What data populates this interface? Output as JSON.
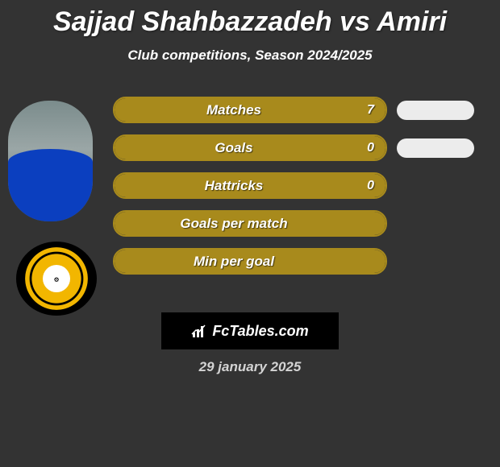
{
  "title": "Sajjad Shahbazzadeh vs Amiri",
  "subtitle": "Club competitions, Season 2024/2025",
  "brand": "FcTables.com",
  "date": "29 january 2025",
  "colors": {
    "accent": "#a88a1c",
    "accent_fill": "#a88a1c",
    "chip": "#ececec"
  },
  "stats": {
    "rows": [
      {
        "label": "Matches",
        "value": "7",
        "fill_pct": 100,
        "show_chip": true
      },
      {
        "label": "Goals",
        "value": "0",
        "fill_pct": 100,
        "show_chip": true
      },
      {
        "label": "Hattricks",
        "value": "0",
        "fill_pct": 100,
        "show_chip": false
      },
      {
        "label": "Goals per match",
        "value": "",
        "fill_pct": 100,
        "show_chip": false
      },
      {
        "label": "Min per goal",
        "value": "",
        "fill_pct": 100,
        "show_chip": false
      }
    ]
  }
}
